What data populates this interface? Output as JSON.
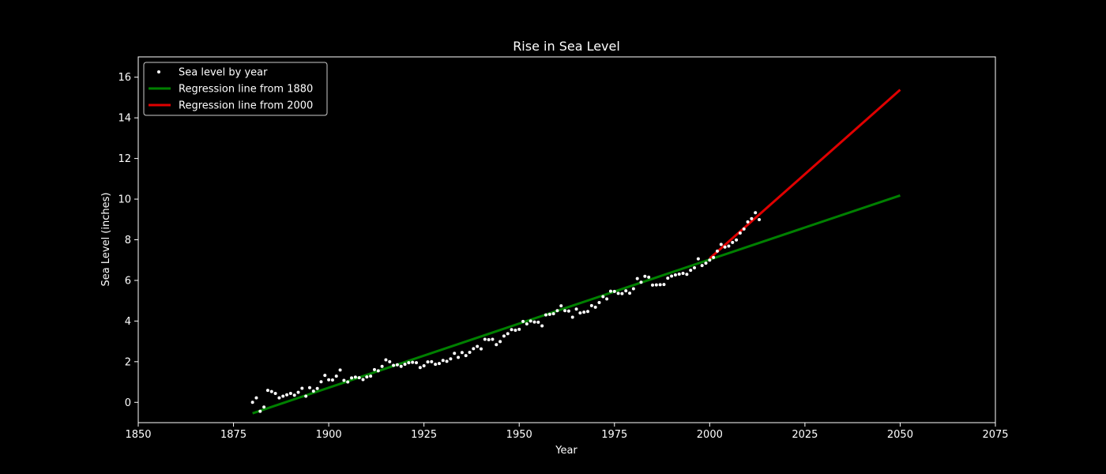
{
  "chart_data": {
    "type": "scatter",
    "title": "Rise in Sea Level",
    "xlabel": "Year",
    "ylabel": "Sea Level (inches)",
    "xlim": [
      1850,
      2075
    ],
    "ylim": [
      -1,
      17
    ],
    "x_ticks": [
      1850,
      1875,
      1900,
      1925,
      1950,
      1975,
      2000,
      2025,
      2050,
      2075
    ],
    "y_ticks": [
      0,
      2,
      4,
      6,
      8,
      10,
      12,
      14,
      16
    ],
    "grid": false,
    "legend_position": "top-left",
    "colors": {
      "background": "#000000",
      "foreground": "#ffffff",
      "scatter": "#ffffff",
      "fit_1880": "#008000",
      "fit_2000": "#e00000"
    },
    "series": [
      {
        "name": "Sea level by year",
        "kind": "scatter",
        "x": [
          1880,
          1881,
          1882,
          1883,
          1884,
          1885,
          1886,
          1887,
          1888,
          1889,
          1890,
          1891,
          1892,
          1893,
          1894,
          1895,
          1896,
          1897,
          1898,
          1899,
          1900,
          1901,
          1902,
          1903,
          1904,
          1905,
          1906,
          1907,
          1908,
          1909,
          1910,
          1911,
          1912,
          1913,
          1914,
          1915,
          1916,
          1917,
          1918,
          1919,
          1920,
          1921,
          1922,
          1923,
          1924,
          1925,
          1926,
          1927,
          1928,
          1929,
          1930,
          1931,
          1932,
          1933,
          1934,
          1935,
          1936,
          1937,
          1938,
          1939,
          1940,
          1941,
          1942,
          1943,
          1944,
          1945,
          1946,
          1947,
          1948,
          1949,
          1950,
          1951,
          1952,
          1953,
          1954,
          1955,
          1956,
          1957,
          1958,
          1959,
          1960,
          1961,
          1962,
          1963,
          1964,
          1965,
          1966,
          1967,
          1968,
          1969,
          1970,
          1971,
          1972,
          1973,
          1974,
          1975,
          1976,
          1977,
          1978,
          1979,
          1980,
          1981,
          1982,
          1983,
          1984,
          1985,
          1986,
          1987,
          1988,
          1989,
          1990,
          1991,
          1992,
          1993,
          1994,
          1995,
          1996,
          1997,
          1998,
          1999,
          2000,
          2001,
          2002,
          2003,
          2004,
          2005,
          2006,
          2007,
          2008,
          2009,
          2010,
          2011,
          2012,
          2013
        ],
        "y": [
          0.0,
          0.22,
          -0.44,
          -0.23,
          0.59,
          0.53,
          0.44,
          0.22,
          0.3,
          0.37,
          0.44,
          0.35,
          0.49,
          0.69,
          0.3,
          0.72,
          0.55,
          0.68,
          1.01,
          1.33,
          1.11,
          1.1,
          1.29,
          1.59,
          1.08,
          1.0,
          1.2,
          1.24,
          1.21,
          1.12,
          1.25,
          1.29,
          1.61,
          1.55,
          1.77,
          2.09,
          2.0,
          1.82,
          1.85,
          1.77,
          1.87,
          1.95,
          1.97,
          1.95,
          1.71,
          1.8,
          1.99,
          2.0,
          1.87,
          1.91,
          2.06,
          2.02,
          2.14,
          2.41,
          2.21,
          2.45,
          2.3,
          2.46,
          2.64,
          2.75,
          2.63,
          3.1,
          3.08,
          3.1,
          2.84,
          2.99,
          3.26,
          3.38,
          3.58,
          3.55,
          3.59,
          3.98,
          3.86,
          4.0,
          3.95,
          3.94,
          3.76,
          4.3,
          4.33,
          4.36,
          4.51,
          4.75,
          4.51,
          4.49,
          4.19,
          4.59,
          4.4,
          4.44,
          4.47,
          4.76,
          4.68,
          4.91,
          5.2,
          5.09,
          5.47,
          5.46,
          5.36,
          5.35,
          5.49,
          5.37,
          5.59,
          6.09,
          5.91,
          6.2,
          6.16,
          5.77,
          5.78,
          5.79,
          5.8,
          6.11,
          6.21,
          6.27,
          6.31,
          6.35,
          6.3,
          6.5,
          6.62,
          7.06,
          6.73,
          6.85,
          7.0,
          7.13,
          7.44,
          7.77,
          7.64,
          7.69,
          7.87,
          7.99,
          8.33,
          8.53,
          8.88,
          9.04,
          9.33,
          8.99
        ]
      },
      {
        "name": "Regression line from 1880",
        "kind": "line",
        "x": [
          1880,
          2050
        ],
        "y": [
          -0.54,
          10.18
        ]
      },
      {
        "name": "Regression line from 2000",
        "kind": "line",
        "x": [
          2000,
          2050
        ],
        "y": [
          7.08,
          15.38
        ]
      }
    ]
  }
}
